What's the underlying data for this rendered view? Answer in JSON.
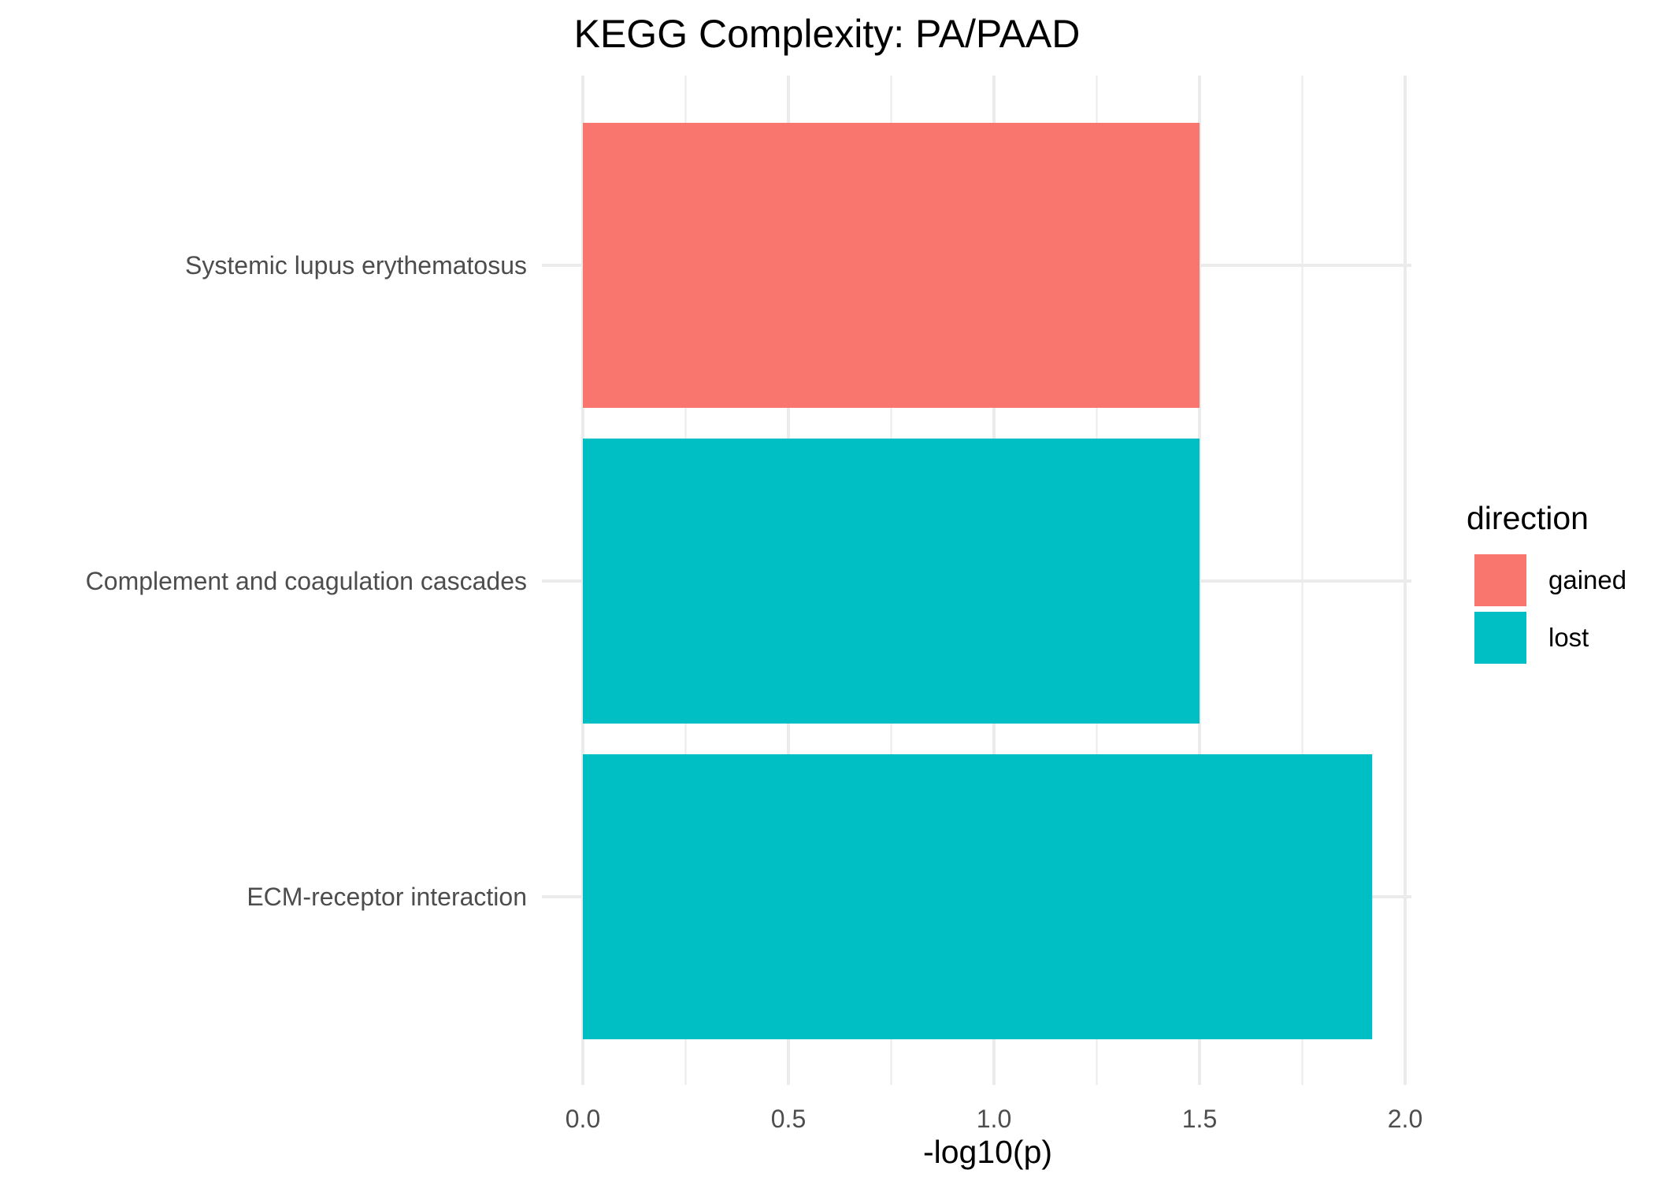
{
  "chart_data": {
    "type": "bar",
    "orientation": "horizontal",
    "title": "KEGG Complexity: PA/PAAD",
    "xlabel": "-log10(p)",
    "ylabel": "",
    "xlim": [
      0,
      2.0
    ],
    "x_ticks": [
      "0.0",
      "0.5",
      "1.0",
      "1.5",
      "2.0"
    ],
    "x_tick_values": [
      0,
      0.5,
      1.0,
      1.5,
      2.0
    ],
    "grid": true,
    "legend": {
      "title": "direction",
      "placement": "right",
      "entries": [
        {
          "label": "gained",
          "color": "#F8766D"
        },
        {
          "label": "lost",
          "color": "#00BFC4"
        }
      ]
    },
    "categories": [
      "Systemic lupus erythematosus",
      "Complement and coagulation cascades",
      "ECM-receptor interaction"
    ],
    "values": [
      1.5,
      1.5,
      1.92
    ],
    "directions": [
      "gained",
      "lost",
      "lost"
    ]
  }
}
